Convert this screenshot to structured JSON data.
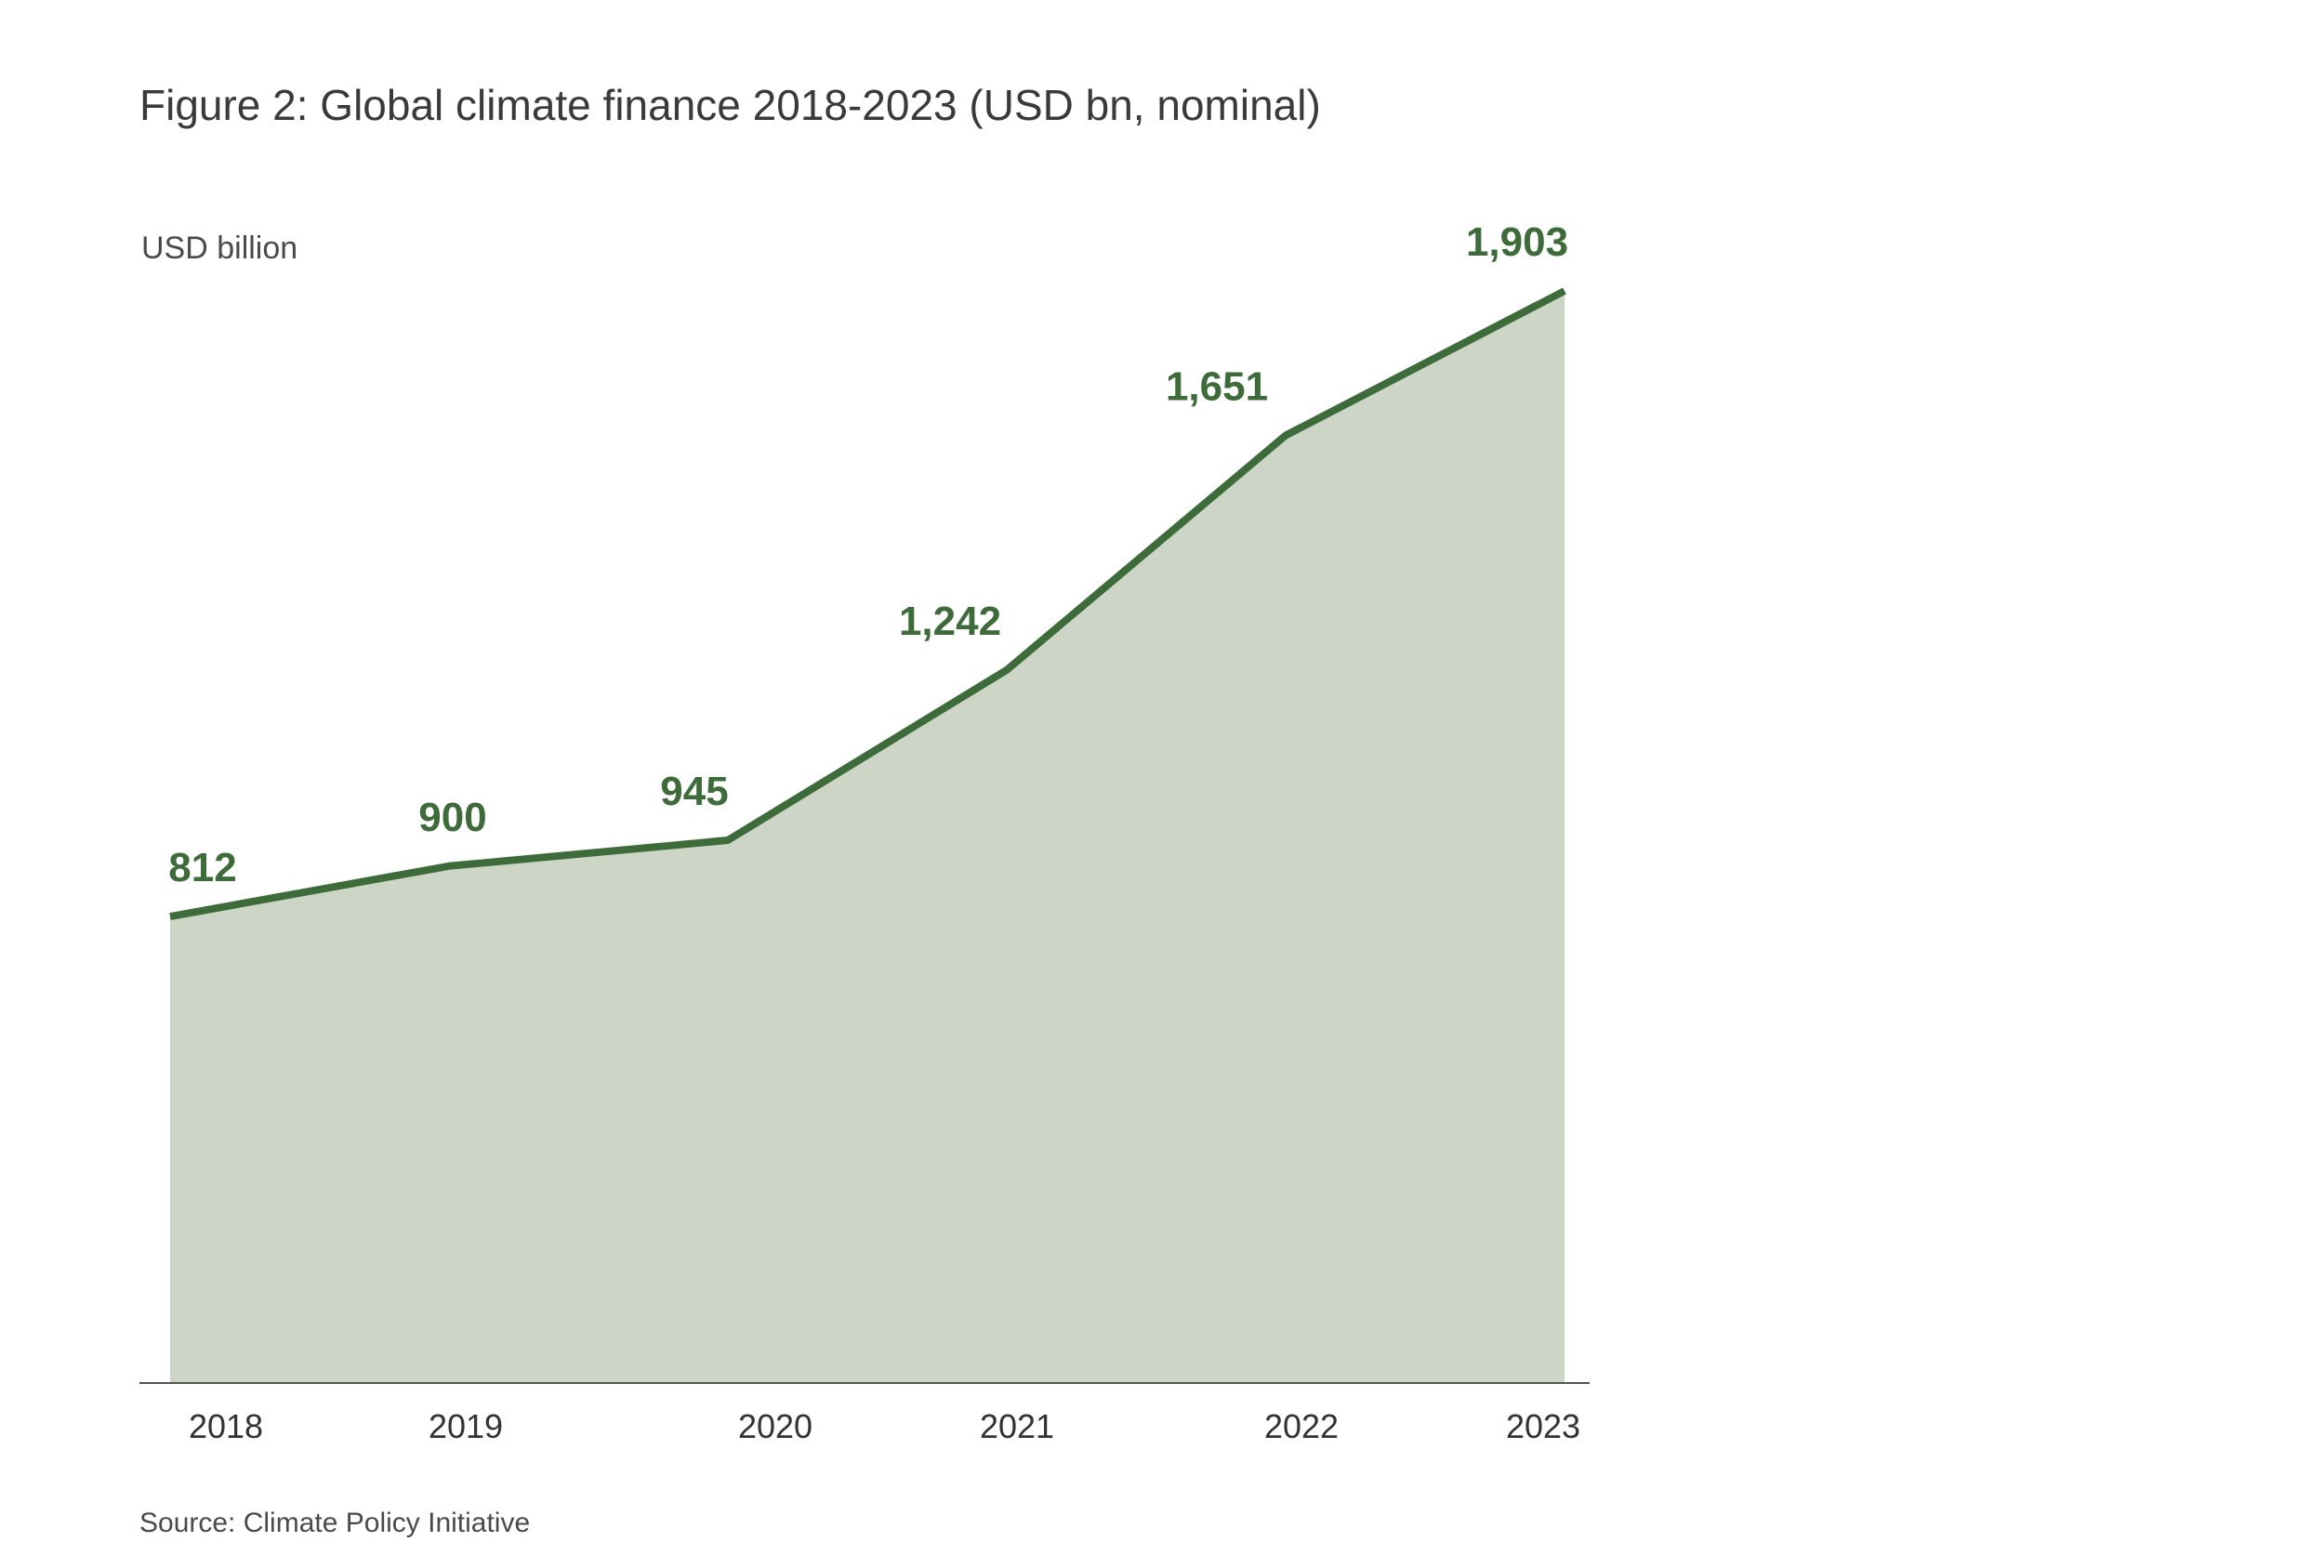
{
  "page": {
    "title": "Figure 2: Global climate finance 2018-2023 (USD bn, nominal)",
    "source": "Source: Climate Policy Initiative"
  },
  "colors": {
    "line": "#3e6b3a",
    "area": "#cdd5c7",
    "axis": "#555555",
    "label": "#3e6b3a"
  },
  "chart_data": {
    "type": "area",
    "title": "Figure 2: Global climate finance 2018-2023 (USD bn, nominal)",
    "ylabel": "USD billion",
    "xlabel": "",
    "categories": [
      "2018",
      "2019",
      "2020",
      "2021",
      "2022",
      "2023"
    ],
    "x": [
      2018,
      2019,
      2020,
      2021,
      2022,
      2023
    ],
    "values": [
      812,
      900,
      945,
      1242,
      1651,
      1903
    ],
    "data_labels": [
      "812",
      "900",
      "945",
      "1,242",
      "1,651",
      "1,903"
    ],
    "ylim": [
      0,
      1903
    ],
    "grid": false,
    "legend": "none",
    "y_axis_ticks_shown": false
  }
}
